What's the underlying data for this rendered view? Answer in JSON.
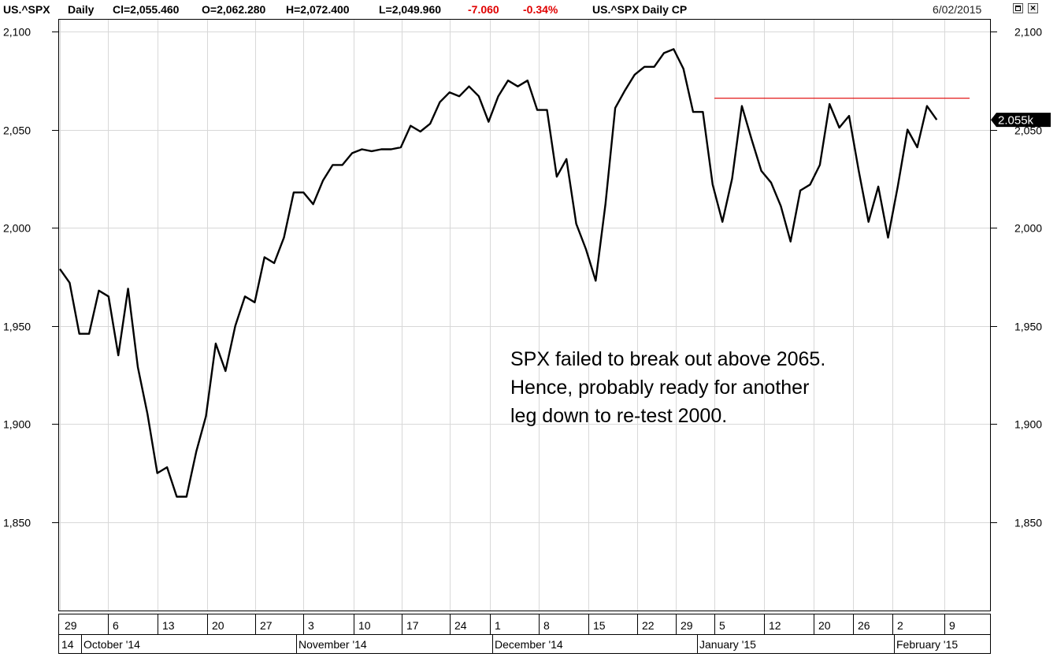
{
  "header": {
    "symbol": "US.^SPX",
    "period": "Daily",
    "close": "Cl=2,055.460",
    "open": "O=2,062.280",
    "high": "H=2,072.400",
    "low": "L=2,049.960",
    "change": "-7.060",
    "change_pct": "-0.34%",
    "series_label": "US.^SPX  Daily  CP",
    "date": "6/02/2015"
  },
  "window_buttons": {
    "restore": "restore",
    "close": "×"
  },
  "colors": {
    "line": "#000000",
    "resistance": "#e00000",
    "grid": "#d8d8d8",
    "negative": "#e00000"
  },
  "chart_data": {
    "type": "line",
    "ylim": [
      1805,
      2106
    ],
    "y_ticks": [
      1850,
      1900,
      1950,
      2000,
      2050,
      2100
    ],
    "y_tick_labels": [
      "1,850",
      "1,900",
      "1,950",
      "2,000",
      "2,050",
      "2,100"
    ],
    "last_value_label": "2.055k",
    "series": [
      {
        "values": [
          1979,
          1972,
          1946,
          1946,
          1968,
          1965,
          1935,
          1969,
          1929,
          1905,
          1875,
          1878,
          1863,
          1863,
          1886,
          1904,
          1941,
          1927,
          1950,
          1965,
          1962,
          1985,
          1982,
          1995,
          2018,
          2018,
          2012,
          2024,
          2032,
          2032,
          2038,
          2040,
          2039,
          2040,
          2040,
          2041,
          2052,
          2049,
          2053,
          2064,
          2069,
          2067,
          2072,
          2067,
          2054,
          2067,
          2075,
          2072,
          2075,
          2060,
          2060,
          2026,
          2035,
          2002,
          1989,
          1973,
          2012,
          2061,
          2070,
          2078,
          2082,
          2082,
          2089,
          2091,
          2081,
          2059,
          2059,
          2022,
          2003,
          2025,
          2062,
          2045,
          2029,
          2023,
          2011,
          1993,
          2019,
          2022,
          2032,
          2063,
          2051,
          2057,
          2029,
          2003,
          2021,
          1995,
          2021,
          2050,
          2041,
          2062,
          2055
        ]
      }
    ],
    "x_day_ticks": [
      "29",
      "6",
      "13",
      "20",
      "27",
      "3",
      "10",
      "17",
      "24",
      "1",
      "8",
      "15",
      "22",
      "29",
      "5",
      "12",
      "20",
      "26",
      "2",
      "9"
    ],
    "x_month_labels": [
      "14",
      "October '14",
      "November '14",
      "December '14",
      "January '15",
      "February '15"
    ],
    "resistance_level": 2066,
    "annotations": [
      "SPX failed to break out above 2065.",
      "Hence, probably ready for another",
      "leg down to re-test 2000."
    ]
  }
}
